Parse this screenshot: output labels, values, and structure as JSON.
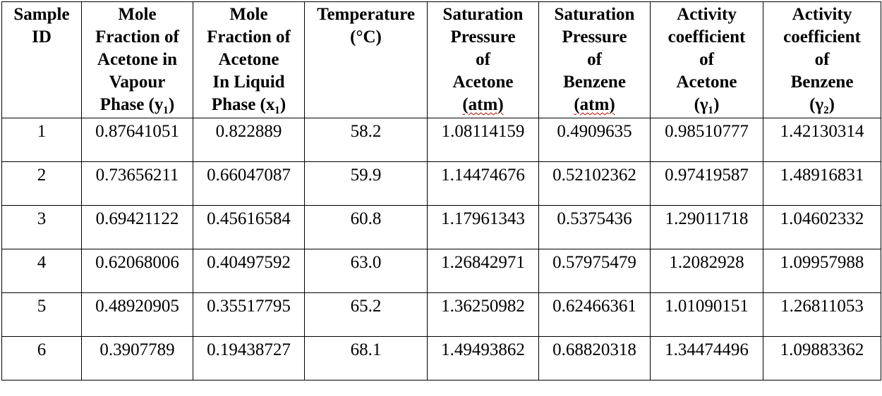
{
  "table": {
    "headers": [
      {
        "lines": [
          "Sample",
          "ID"
        ]
      },
      {
        "lines": [
          "Mole",
          "Fraction of",
          "Acetone in",
          "Vapour",
          "Phase (y₁)"
        ]
      },
      {
        "lines": [
          "Mole",
          "Fraction of",
          "Acetone",
          "In Liquid",
          "Phase (x₁)"
        ]
      },
      {
        "lines": [
          "Temperature",
          "(°C)"
        ]
      },
      {
        "lines": [
          "Saturation",
          "Pressure",
          "of",
          "Acetone",
          "(atm)"
        ]
      },
      {
        "lines": [
          "Saturation",
          "Pressure",
          "of",
          "Benzene",
          "(atm)"
        ]
      },
      {
        "lines": [
          "Activity",
          "coefficient",
          "of",
          "Acetone",
          "(γ₁)"
        ]
      },
      {
        "lines": [
          "Activity",
          "coefficient",
          "of",
          "Benzene",
          "(γ₂)"
        ]
      }
    ],
    "rows": [
      [
        "1",
        "0.87641051",
        "0.822889",
        "58.2",
        "1.08114159",
        "0.4909635",
        "0.98510777",
        "1.42130314"
      ],
      [
        "2",
        "0.73656211",
        "0.66047087",
        "59.9",
        "1.14474676",
        "0.52102362",
        "0.97419587",
        "1.48916831"
      ],
      [
        "3",
        "0.69421122",
        "0.45616584",
        "60.8",
        "1.17961343",
        "0.5375436",
        "1.29011718",
        "1.04602332"
      ],
      [
        "4",
        "0.62068006",
        "0.40497592",
        "63.0",
        "1.26842971",
        "0.57975479",
        "1.2082928",
        "1.09957988"
      ],
      [
        "5",
        "0.48920905",
        "0.35517795",
        "65.2",
        "1.36250982",
        "0.62466361",
        "1.01090151",
        "1.26811053"
      ],
      [
        "6",
        "0.3907789",
        "0.19438727",
        "68.1",
        "1.49493862",
        "0.68820318",
        "1.34474496",
        "1.09883362"
      ]
    ]
  }
}
